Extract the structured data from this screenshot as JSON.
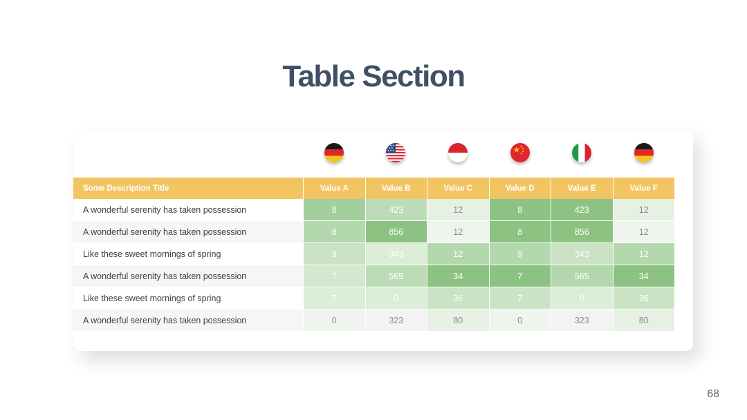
{
  "slide": {
    "title": "Table Section",
    "page_number": "68"
  },
  "flags": [
    {
      "name": "germany-flag-icon",
      "country": "germany"
    },
    {
      "name": "usa-flag-icon",
      "country": "usa"
    },
    {
      "name": "indonesia-flag-icon",
      "country": "indonesia"
    },
    {
      "name": "china-flag-icon",
      "country": "china"
    },
    {
      "name": "italy-flag-icon",
      "country": "italy"
    },
    {
      "name": "germany-flag-icon",
      "country": "germany"
    }
  ],
  "table": {
    "header_desc": "Some Description Title",
    "columns": [
      "Value A",
      "Value B",
      "Value C",
      "Value D",
      "Value E",
      "Value F"
    ],
    "rows": [
      {
        "desc": "A wonderful serenity has taken possession",
        "values": [
          "8",
          "423",
          "12",
          "8",
          "423",
          "12"
        ]
      },
      {
        "desc": "A wonderful serenity has taken possession",
        "values": [
          "8",
          "856",
          "12",
          "8",
          "856",
          "12"
        ]
      },
      {
        "desc": "Like these sweet mornings of spring",
        "values": [
          "9",
          "343",
          "12",
          "9",
          "343",
          "12"
        ]
      },
      {
        "desc": "A wonderful serenity has taken possession",
        "values": [
          "7",
          "565",
          "34",
          "7",
          "565",
          "34"
        ]
      },
      {
        "desc": "Like these sweet mornings of spring",
        "values": [
          "7",
          "0",
          "36",
          "7",
          "0",
          "36"
        ]
      },
      {
        "desc": "A wonderful serenity has taken possession",
        "values": [
          "0",
          "323",
          "80",
          "0",
          "323",
          "80"
        ]
      }
    ],
    "cell_colors": [
      [
        "#a3cf9c",
        "#bcdcb7",
        "#e5f1e3",
        "#8cc383",
        "#8cc383",
        "#e5f1e3"
      ],
      [
        "#b4d8ae",
        "#8cc383",
        "#eff5ee",
        "#8cc383",
        "#8cc383",
        "#eff5ee"
      ],
      [
        "#c9e3c4",
        "#dcedd8",
        "#b4d8ae",
        "#b4d8ae",
        "#c9e3c4",
        "#b4d8ae"
      ],
      [
        "#d3e8cf",
        "#bcdcb7",
        "#8cc383",
        "#8cc383",
        "#b4d8ae",
        "#8cc383"
      ],
      [
        "#dcedd8",
        "#dcedd8",
        "#c9e3c4",
        "#c9e3c4",
        "#dcedd8",
        "#c9e3c4"
      ],
      [
        "#eff5ee",
        "#f3f3f3",
        "#e5f1e3",
        "#eff5ee",
        "#f3f3f3",
        "#e5f1e3"
      ]
    ],
    "dim_text_cells": [
      [
        false,
        false,
        true,
        false,
        false,
        true
      ],
      [
        false,
        false,
        true,
        false,
        false,
        true
      ],
      [
        false,
        false,
        false,
        false,
        false,
        false
      ],
      [
        false,
        false,
        false,
        false,
        false,
        false
      ],
      [
        false,
        false,
        false,
        false,
        false,
        false
      ],
      [
        true,
        true,
        true,
        true,
        true,
        true
      ]
    ]
  },
  "colors": {
    "header": "#f2c462",
    "title": "#3e4f66"
  }
}
